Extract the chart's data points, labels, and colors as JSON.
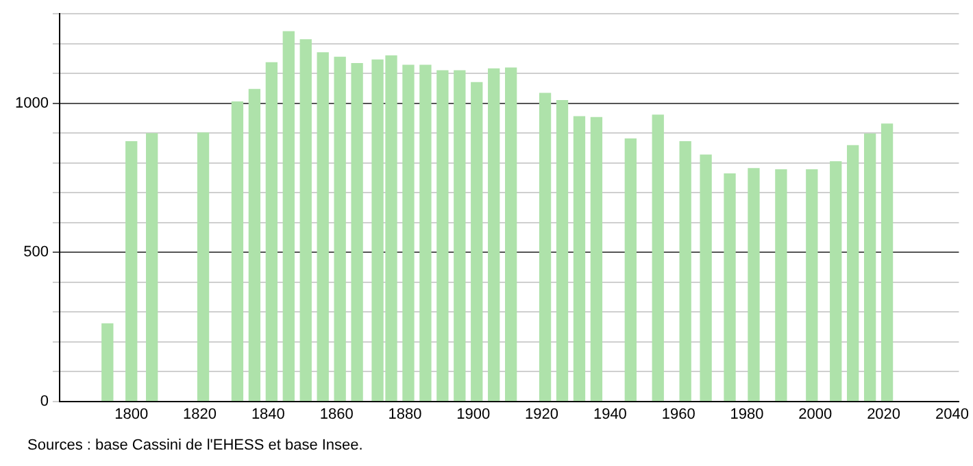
{
  "chart_data": {
    "type": "bar",
    "color": "#aee2aa",
    "x": [
      1793,
      1800,
      1806,
      1821,
      1831,
      1836,
      1841,
      1846,
      1851,
      1856,
      1861,
      1866,
      1872,
      1876,
      1881,
      1886,
      1891,
      1896,
      1901,
      1906,
      1911,
      1921,
      1926,
      1931,
      1936,
      1946,
      1954,
      1962,
      1968,
      1975,
      1982,
      1990,
      1999,
      2006,
      2011,
      2016,
      2021
    ],
    "values": [
      260,
      871,
      898,
      900,
      1004,
      1046,
      1136,
      1240,
      1213,
      1169,
      1154,
      1133,
      1145,
      1159,
      1127,
      1127,
      1109,
      1109,
      1069,
      1115,
      1118,
      1033,
      1009,
      955,
      952,
      880,
      960,
      871,
      826,
      763,
      781,
      777,
      777,
      804,
      858,
      897,
      930
    ],
    "xlim": [
      1779,
      2042
    ],
    "xticks": [
      1800,
      1820,
      1840,
      1860,
      1880,
      1900,
      1920,
      1940,
      1960,
      1980,
      2000,
      2020,
      2040
    ],
    "ylim": [
      0,
      1300
    ],
    "yticks": [
      0,
      {
        "value": 100,
        "label": null
      },
      {
        "value": 200,
        "label": null
      },
      {
        "value": 300,
        "label": null
      },
      {
        "value": 400,
        "label": null
      },
      500,
      {
        "value": 600,
        "label": null
      },
      {
        "value": 700,
        "label": null
      },
      {
        "value": 800,
        "label": null
      },
      {
        "value": 900,
        "label": null
      },
      1000,
      {
        "value": 1100,
        "label": null
      },
      {
        "value": 1200,
        "label": null
      },
      {
        "value": 1300,
        "label": null
      }
    ],
    "grid": "y",
    "annotations": [
      "Sources : base Cassini de l'EHESS et base Insee."
    ]
  }
}
